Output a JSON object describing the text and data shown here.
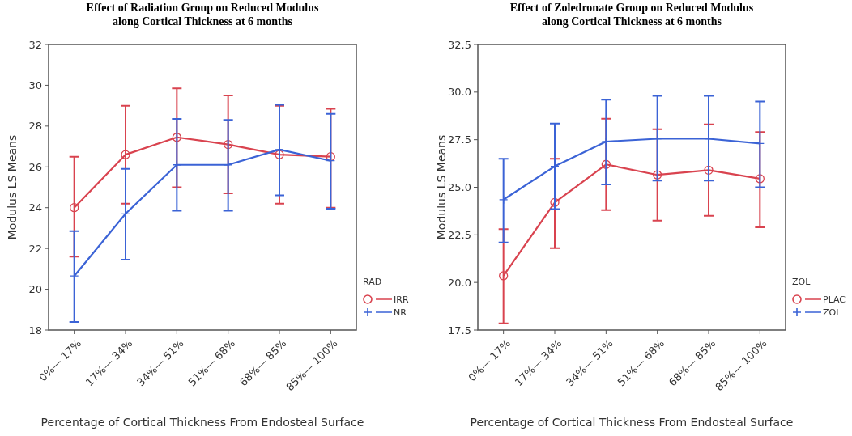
{
  "chart_data": [
    {
      "type": "line",
      "title": "Effect of Radiation Group on Reduced Modulus\nalong Cortical Thickness at 6 months",
      "xlabel": "Percentage of Cortical Thickness From Endosteal Surface",
      "ylabel": "Modulus LS Means",
      "legend_title": "RAD",
      "legend": "bottom right",
      "categories": [
        "0%— 17%",
        "17%— 34%",
        "34%— 51%",
        "51%— 68%",
        "68%— 85%",
        "85%— 100%"
      ],
      "ylim": [
        18,
        32
      ],
      "yticks": [
        18,
        20,
        22,
        24,
        26,
        28,
        30,
        32
      ],
      "series": [
        {
          "name": "IRR",
          "color": "#d9434f",
          "marker": "circle",
          "values": [
            24.0,
            26.6,
            27.45,
            27.1,
            26.6,
            26.5
          ],
          "errors": [
            [
              21.6,
              26.5
            ],
            [
              24.2,
              29.0
            ],
            [
              25.0,
              29.85
            ],
            [
              24.7,
              29.5
            ],
            [
              24.2,
              29.0
            ],
            [
              24.0,
              28.85
            ]
          ]
        },
        {
          "name": "NR",
          "color": "#3b63d6",
          "marker": "cross",
          "values": [
            20.65,
            23.7,
            26.1,
            26.1,
            26.85,
            26.3
          ],
          "errors": [
            [
              18.4,
              22.85
            ],
            [
              21.45,
              25.9
            ],
            [
              23.85,
              28.35
            ],
            [
              23.85,
              28.3
            ],
            [
              24.6,
              29.05
            ],
            [
              23.95,
              28.6
            ]
          ]
        }
      ]
    },
    {
      "type": "line",
      "title": "Effect of Zoledronate Group on Reduced Modulus\nalong Cortical Thickness at 6 months",
      "xlabel": "Percentage of Cortical Thickness From Endosteal Surface",
      "ylabel": "Modulus LS Means",
      "legend_title": "ZOL",
      "legend": "bottom right",
      "categories": [
        "0%— 17%",
        "17%— 34%",
        "34%— 51%",
        "51%— 68%",
        "68%— 85%",
        "85%— 100%"
      ],
      "ylim": [
        17.5,
        32.5
      ],
      "yticks": [
        {
          "value": 17.5,
          "label": "17.5"
        },
        {
          "value": 20,
          "label": "20.0"
        },
        {
          "value": 22.5,
          "label": "22.5"
        },
        {
          "value": 25,
          "label": "25.0"
        },
        {
          "value": 27.5,
          "label": "27.5"
        },
        {
          "value": 30,
          "label": "30.0"
        },
        {
          "value": 32.5,
          "label": "32.5"
        }
      ],
      "series": [
        {
          "name": "PLAC",
          "color": "#d9434f",
          "marker": "circle",
          "values": [
            20.35,
            24.2,
            26.2,
            25.65,
            25.9,
            25.45
          ],
          "errors": [
            [
              17.85,
              22.8
            ],
            [
              21.8,
              26.5
            ],
            [
              23.8,
              28.6
            ],
            [
              23.25,
              28.05
            ],
            [
              23.5,
              28.3
            ],
            [
              22.9,
              27.9
            ]
          ]
        },
        {
          "name": "ZOL",
          "color": "#3b63d6",
          "marker": "cross",
          "values": [
            24.35,
            26.1,
            27.4,
            27.55,
            27.55,
            27.3
          ],
          "errors": [
            [
              22.1,
              26.5
            ],
            [
              23.85,
              28.35
            ],
            [
              25.15,
              29.6
            ],
            [
              25.35,
              29.8
            ],
            [
              25.35,
              29.8
            ],
            [
              25.0,
              29.5
            ]
          ]
        }
      ]
    }
  ]
}
